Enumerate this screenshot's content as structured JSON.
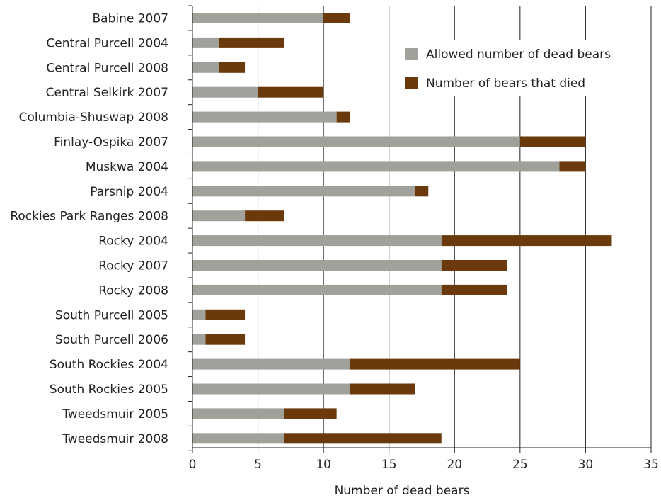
{
  "chart_data": {
    "type": "bar",
    "orientation": "horizontal",
    "stacked": true,
    "categories": [
      "Babine 2007",
      "Central Purcell 2004",
      "Central Purcell 2008",
      "Central Selkirk 2007",
      "Columbia-Shuswap 2008",
      "Finlay-Ospika 2007",
      "Muskwa 2004",
      "Parsnip 2004",
      "Rockies Park Ranges 2008",
      "Rocky 2004",
      "Rocky 2007",
      "Rocky 2008",
      "South Purcell 2005",
      "South Purcell 2006",
      "South Rockies 2004",
      "South Rockies 2005",
      "Tweedsmuir 2005",
      "Tweedsmuir 2008"
    ],
    "series": [
      {
        "name": "Allowed number of dead bears",
        "color": "#a0a19a",
        "values": [
          10,
          2,
          2,
          5,
          11,
          25,
          28,
          17,
          4,
          19,
          19,
          19,
          1,
          1,
          12,
          12,
          7,
          7
        ]
      },
      {
        "name": "Number of bears that died",
        "color": "#6b3a0c",
        "values": [
          2,
          5,
          2,
          5,
          1,
          5,
          2,
          1,
          3,
          13,
          5,
          5,
          3,
          3,
          13,
          5,
          4,
          12
        ]
      }
    ],
    "xlabel": "Number of dead bears",
    "ylabel": "",
    "xlim": [
      0,
      35
    ],
    "xticks": [
      0,
      5,
      10,
      15,
      20,
      25,
      30,
      35
    ],
    "grid": "vertical",
    "legend_position": "top-right"
  }
}
